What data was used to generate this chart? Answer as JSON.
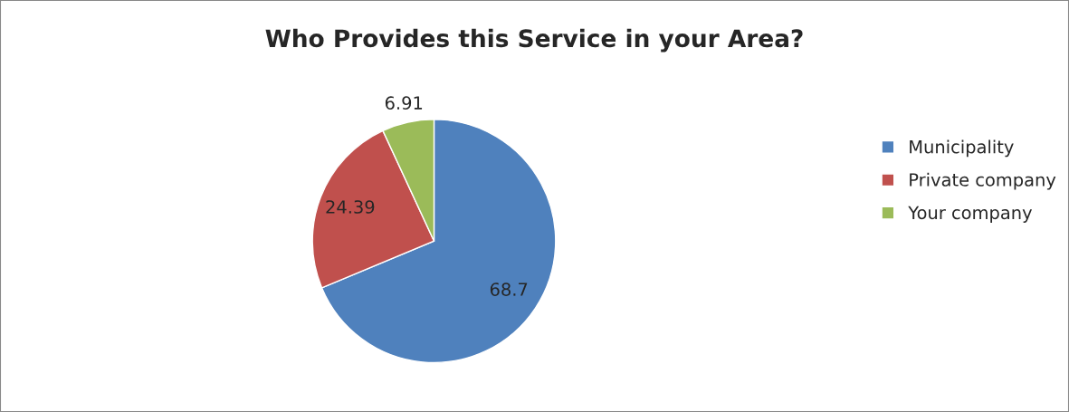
{
  "chart_data": {
    "type": "pie",
    "title": "Who Provides this Service in your Area?",
    "categories": [
      "Municipality",
      "Private company",
      "Your company"
    ],
    "values": [
      68.7,
      24.39,
      6.91
    ],
    "colors": [
      "#4f81bd",
      "#c0504d",
      "#9bbb59"
    ],
    "data_labels": true,
    "legend": "right"
  }
}
